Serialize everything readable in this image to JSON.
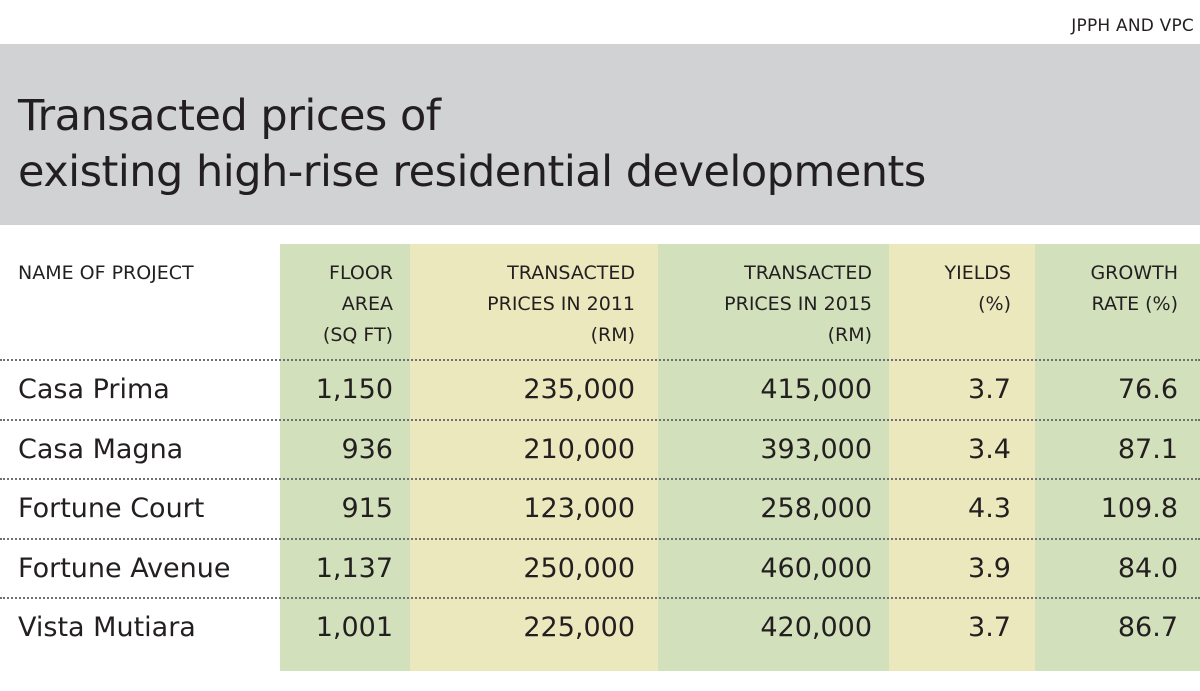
{
  "source": "JPPH AND VPC",
  "chart_data": {
    "type": "table",
    "title": [
      "Transacted prices of",
      "existing high-rise residential developments"
    ],
    "columns": [
      "NAME OF PROJECT",
      "FLOOR\nAREA\n(SQ FT)",
      "TRANSACTED\nPRICES IN 2011\n(RM)",
      "TRANSACTED\nPRICES IN 2015\n(RM)",
      "YIELDS\n(%)",
      "GROWTH\nRATE (%)"
    ],
    "rows": [
      [
        "Casa Prima",
        "1,150",
        "235,000",
        "415,000",
        "3.7",
        "76.6"
      ],
      [
        "Casa Magna",
        "936",
        "210,000",
        "393,000",
        "3.4",
        "87.1"
      ],
      [
        "Fortune Court",
        "915",
        "123,000",
        "258,000",
        "4.3",
        "109.8"
      ],
      [
        "Fortune Avenue",
        "1,137",
        "250,000",
        "460,000",
        "3.9",
        "84.0"
      ],
      [
        "Vista Mutiara",
        "1,001",
        "225,000",
        "420,000",
        "3.7",
        "86.7"
      ]
    ],
    "colors": {
      "title_band": "#d1d2d4",
      "green_column": "#d2e0bc",
      "yellow_column": "#ebe8be",
      "text": "#231f20"
    }
  }
}
